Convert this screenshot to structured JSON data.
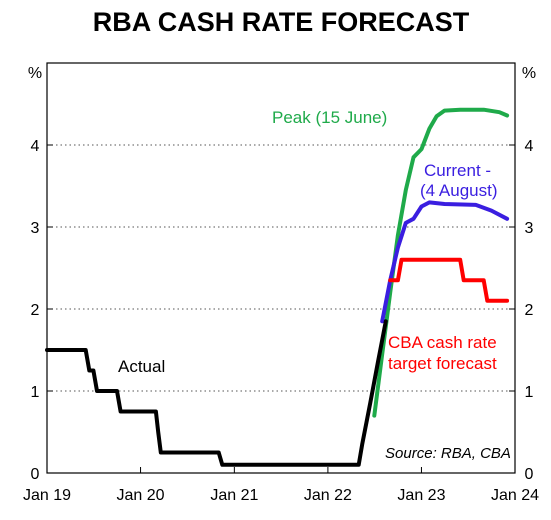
{
  "chart_data": {
    "type": "line",
    "title": "RBA CASH RATE FORECAST",
    "ylabel_left": "%",
    "ylabel_right": "%",
    "ylim": [
      0,
      5
    ],
    "yticks": [
      0,
      1,
      2,
      3,
      4
    ],
    "xlim": [
      "2019-01-01",
      "2024-01-01"
    ],
    "xticks": [
      {
        "label": "Jan 19",
        "x": "2019-01-01"
      },
      {
        "label": "Jan 20",
        "x": "2020-01-01"
      },
      {
        "label": "Jan 21",
        "x": "2021-01-01"
      },
      {
        "label": "Jan 22",
        "x": "2022-01-01"
      },
      {
        "label": "Jan 23",
        "x": "2023-01-01"
      },
      {
        "label": "Jan 24",
        "x": "2024-01-01"
      }
    ],
    "grid": "horizontal-dotted",
    "source": "Source: RBA, CBA",
    "series": [
      {
        "name": "Peak (15 June)",
        "color": "#1faa4a",
        "points": [
          [
            "2022-07-01",
            0.7
          ],
          [
            "2022-08-01",
            1.45
          ],
          [
            "2022-09-01",
            2.2
          ],
          [
            "2022-10-01",
            2.9
          ],
          [
            "2022-11-01",
            3.45
          ],
          [
            "2022-12-01",
            3.85
          ],
          [
            "2023-01-01",
            3.95
          ],
          [
            "2023-02-01",
            4.2
          ],
          [
            "2023-03-01",
            4.35
          ],
          [
            "2023-04-01",
            4.42
          ],
          [
            "2023-06-01",
            4.43
          ],
          [
            "2023-09-01",
            4.43
          ],
          [
            "2023-11-01",
            4.4
          ],
          [
            "2023-12-01",
            4.36
          ]
        ]
      },
      {
        "name": "Current - (4 August)",
        "color": "#3a1ee0",
        "points": [
          [
            "2022-08-01",
            1.85
          ],
          [
            "2022-09-01",
            2.35
          ],
          [
            "2022-10-01",
            2.75
          ],
          [
            "2022-11-01",
            3.05
          ],
          [
            "2022-12-01",
            3.1
          ],
          [
            "2023-01-01",
            3.25
          ],
          [
            "2023-02-01",
            3.3
          ],
          [
            "2023-04-01",
            3.28
          ],
          [
            "2023-08-01",
            3.27
          ],
          [
            "2023-10-01",
            3.2
          ],
          [
            "2023-12-01",
            3.1
          ]
        ]
      },
      {
        "name": "CBA cash rate target forecast",
        "color": "#ff0000",
        "points": [
          [
            "2022-09-01",
            2.35
          ],
          [
            "2022-10-01",
            2.35
          ],
          [
            "2022-10-15",
            2.6
          ],
          [
            "2023-06-01",
            2.6
          ],
          [
            "2023-06-15",
            2.35
          ],
          [
            "2023-09-01",
            2.35
          ],
          [
            "2023-09-15",
            2.1
          ],
          [
            "2023-12-01",
            2.1
          ]
        ]
      },
      {
        "name": "Actual",
        "color": "#000000",
        "points": [
          [
            "2019-01-01",
            1.5
          ],
          [
            "2019-06-01",
            1.5
          ],
          [
            "2019-06-15",
            1.25
          ],
          [
            "2019-07-01",
            1.25
          ],
          [
            "2019-07-15",
            1.0
          ],
          [
            "2019-10-01",
            1.0
          ],
          [
            "2019-10-15",
            0.75
          ],
          [
            "2020-03-01",
            0.75
          ],
          [
            "2020-03-10",
            0.5
          ],
          [
            "2020-03-20",
            0.25
          ],
          [
            "2020-11-01",
            0.25
          ],
          [
            "2020-11-15",
            0.1
          ],
          [
            "2022-05-01",
            0.1
          ],
          [
            "2022-05-15",
            0.35
          ],
          [
            "2022-06-15",
            0.85
          ],
          [
            "2022-07-15",
            1.35
          ],
          [
            "2022-08-15",
            1.85
          ]
        ]
      }
    ],
    "annotations": [
      {
        "text": "Actual",
        "color": "#000000"
      },
      {
        "text": "Peak (15 June)",
        "color": "#1faa4a"
      },
      {
        "text": "Current -",
        "color": "#3a1ee0"
      },
      {
        "text": "(4 August)",
        "color": "#3a1ee0"
      },
      {
        "text": "CBA cash rate",
        "color": "#ff0000"
      },
      {
        "text": "target forecast",
        "color": "#ff0000"
      }
    ]
  }
}
